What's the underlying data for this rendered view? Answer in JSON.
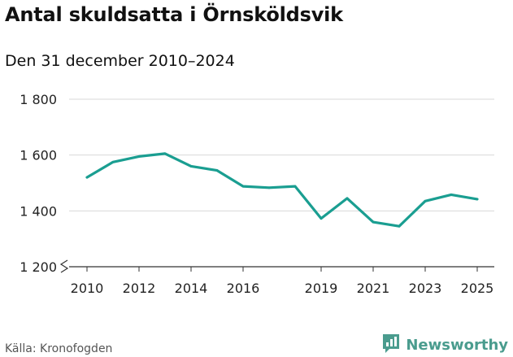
{
  "title": "Antal skuldsatta i Örnsköldsvik",
  "subtitle": "Den 31 december 2010–2024",
  "source": "Källa: Kronofogden",
  "brand": {
    "name": "Newsworthy",
    "icon": "bar-chart-logo-icon"
  },
  "colors": {
    "line": "#1a9e91",
    "grid": "#d8d8d8",
    "axis": "#333333",
    "brand": "#4a9c8e"
  },
  "chart_data": {
    "type": "line",
    "title": "Antal skuldsatta i Örnsköldsvik",
    "subtitle": "Den 31 december 2010–2024",
    "xlabel": "",
    "ylabel": "",
    "x": [
      2010,
      2011,
      2012,
      2013,
      2014,
      2015,
      2016,
      2017,
      2018,
      2019,
      2020,
      2021,
      2022,
      2023,
      2024,
      2025
    ],
    "series": [
      {
        "values": [
          1520,
          1575,
          1595,
          1605,
          1560,
          1545,
          1488,
          1483,
          1488,
          1373,
          1445,
          1360,
          1345,
          1435,
          1458,
          1442
        ]
      }
    ],
    "x_ticks": [
      "2010",
      "2012",
      "2014",
      "2016",
      "2019",
      "2021",
      "2023",
      "2025"
    ],
    "x_tick_values": [
      2010,
      2012,
      2014,
      2016,
      2019,
      2021,
      2023,
      2025
    ],
    "y_ticks": [
      "1 200",
      "1 400",
      "1 600",
      "1 800"
    ],
    "y_tick_values": [
      1200,
      1400,
      1600,
      1800
    ],
    "ylim": [
      1200,
      1800
    ],
    "xlim": [
      2010,
      2025
    ],
    "grid": true,
    "axis_break": true,
    "legend": "none"
  }
}
